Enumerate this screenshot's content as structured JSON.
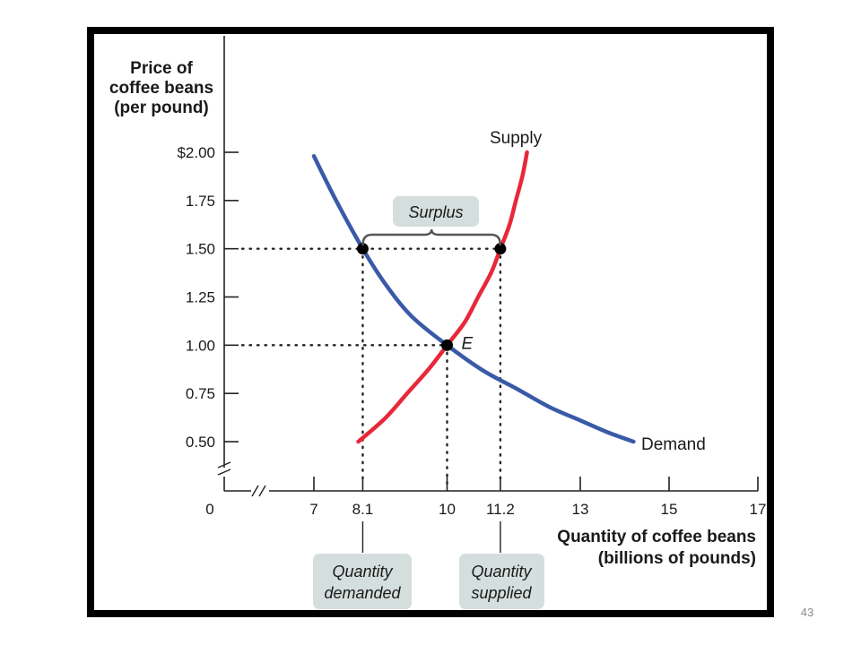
{
  "slide": {
    "page_number": "43"
  },
  "colors": {
    "supply": "#e8283a",
    "demand": "#3a5aa8",
    "label_box": "#d4dedd",
    "axis": "#222222",
    "text": "#1a1a1a"
  },
  "chart_data": {
    "type": "line",
    "title": "",
    "ylabel_lines": [
      "Price of",
      "coffee beans",
      "(per pound)"
    ],
    "xlabel_lines": [
      "Quantity of coffee beans",
      "(billions of pounds)"
    ],
    "origin_label": "0",
    "x_ticks": [
      {
        "value": 7,
        "label": "7"
      },
      {
        "value": 8.1,
        "label": "8.1"
      },
      {
        "value": 10,
        "label": "10"
      },
      {
        "value": 11.2,
        "label": "11.2"
      },
      {
        "value": 13,
        "label": "13"
      },
      {
        "value": 15,
        "label": "15"
      },
      {
        "value": 17,
        "label": "17"
      }
    ],
    "y_ticks": [
      {
        "value": 2.0,
        "label": "$2.00"
      },
      {
        "value": 1.75,
        "label": "1.75"
      },
      {
        "value": 1.5,
        "label": "1.50"
      },
      {
        "value": 1.25,
        "label": "1.25"
      },
      {
        "value": 1.0,
        "label": "1.00"
      },
      {
        "value": 0.75,
        "label": "0.75"
      },
      {
        "value": 0.5,
        "label": "0.50"
      }
    ],
    "xlim": [
      7,
      17
    ],
    "ylim": [
      0.5,
      2.0
    ],
    "axis_breaks": {
      "x": true,
      "y": true
    },
    "grid": false,
    "series": [
      {
        "name": "Supply",
        "color": "#e8283a",
        "points": [
          [
            8.0,
            0.5
          ],
          [
            8.6,
            0.62
          ],
          [
            9.1,
            0.75
          ],
          [
            9.6,
            0.88
          ],
          [
            10.0,
            1.0
          ],
          [
            10.4,
            1.12
          ],
          [
            10.7,
            1.25
          ],
          [
            11.0,
            1.38
          ],
          [
            11.2,
            1.5
          ],
          [
            11.4,
            1.62
          ],
          [
            11.55,
            1.75
          ],
          [
            11.7,
            1.88
          ],
          [
            11.8,
            2.0
          ]
        ]
      },
      {
        "name": "Demand",
        "color": "#3a5aa8",
        "points": [
          [
            7.0,
            1.98
          ],
          [
            7.5,
            1.75
          ],
          [
            8.1,
            1.5
          ],
          [
            8.6,
            1.32
          ],
          [
            9.2,
            1.15
          ],
          [
            10.0,
            1.0
          ],
          [
            10.8,
            0.87
          ],
          [
            11.6,
            0.77
          ],
          [
            12.3,
            0.68
          ],
          [
            13.0,
            0.61
          ],
          [
            13.6,
            0.55
          ],
          [
            14.2,
            0.5
          ]
        ]
      }
    ],
    "points": [
      {
        "x": 8.1,
        "y": 1.5,
        "label": ""
      },
      {
        "x": 11.2,
        "y": 1.5,
        "label": ""
      },
      {
        "x": 10.0,
        "y": 1.0,
        "label": "E"
      }
    ],
    "guide_lines": [
      {
        "from": [
          7,
          1.5
        ],
        "to": [
          11.2,
          1.5
        ]
      },
      {
        "from": [
          7,
          1.0
        ],
        "to": [
          10.0,
          1.0
        ]
      },
      {
        "from": [
          8.1,
          1.5
        ],
        "to": [
          8.1,
          0.5
        ]
      },
      {
        "from": [
          10.0,
          1.0
        ],
        "to": [
          10.0,
          0.5
        ]
      },
      {
        "from": [
          11.2,
          1.5
        ],
        "to": [
          11.2,
          0.5
        ]
      }
    ],
    "annotations": {
      "surplus": "Surplus",
      "quantity_demanded": [
        "Quantity",
        "demanded"
      ],
      "quantity_supplied": [
        "Quantity",
        "supplied"
      ]
    }
  }
}
